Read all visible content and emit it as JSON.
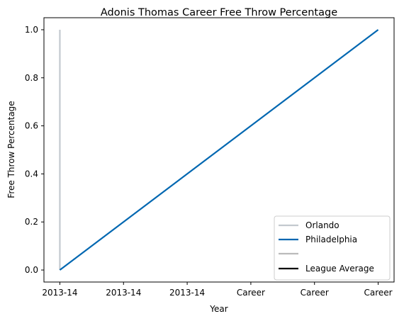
{
  "chart_data": {
    "type": "line",
    "title": "Adonis Thomas Career Free Throw Percentage",
    "xlabel": "Year",
    "ylabel": "Free Throw Percentage",
    "x_tick_labels": [
      "2013-14",
      "2013-14",
      "2013-14",
      "Career",
      "Career",
      "Career"
    ],
    "y_tick_labels": [
      "0.0",
      "0.2",
      "0.4",
      "0.6",
      "0.8",
      "1.0"
    ],
    "xlim": [
      -0.25,
      5.25
    ],
    "ylim": [
      -0.05,
      1.05
    ],
    "grid": false,
    "legend_position": "lower-right",
    "series": [
      {
        "name": "Orlando",
        "color": "#c3c9cf",
        "x": [
          0,
          0
        ],
        "y": [
          0.0,
          1.0
        ]
      },
      {
        "name": "Philadelphia",
        "color": "#0067b1",
        "x": [
          0,
          5
        ],
        "y": [
          0.0,
          1.0
        ]
      },
      {
        "name": "",
        "color": "#bbbbbb",
        "x": [],
        "y": []
      },
      {
        "name": "League Average",
        "color": "#000000",
        "x": [],
        "y": []
      }
    ]
  }
}
